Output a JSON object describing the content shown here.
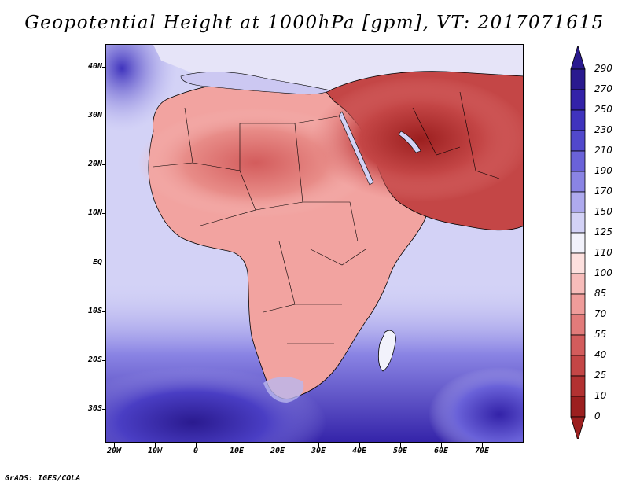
{
  "title": "Geopotential Height at 1000hPa [gpm], VT: 2017071615",
  "footer": "GrADS: IGES/COLA",
  "y_axis_labels": [
    "40N",
    "30N",
    "20N",
    "10N",
    "EQ",
    "10S",
    "20S",
    "30S"
  ],
  "x_axis_labels": [
    "20W",
    "10W",
    "0",
    "10E",
    "20E",
    "30E",
    "40E",
    "50E",
    "60E",
    "70E"
  ],
  "colorbar": {
    "labels": [
      "290",
      "270",
      "250",
      "230",
      "210",
      "190",
      "170",
      "150",
      "125",
      "110",
      "100",
      "85",
      "70",
      "55",
      "40",
      "25",
      "10",
      "0"
    ],
    "colors": [
      "#2a1a8f",
      "#3322a8",
      "#3f33bd",
      "#5148cc",
      "#6a62d9",
      "#8a84e4",
      "#aeaaee",
      "#d3d2f6",
      "#f2f2fb",
      "#fde0de",
      "#f7bcba",
      "#ef9c9a",
      "#e27b7a",
      "#d35c5c",
      "#c44646",
      "#b23131",
      "#9c1f1f"
    ]
  },
  "colors": {
    "ocean_high": "#3a2cb0",
    "ocean_mid": "#b9b6ee",
    "land_low": "#e88c88",
    "land_very_low": "#a82525"
  }
}
